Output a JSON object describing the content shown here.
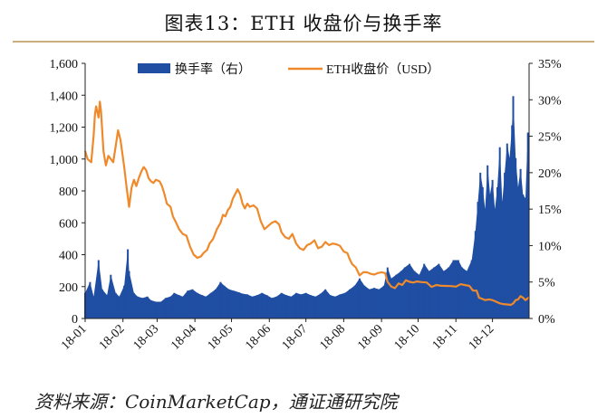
{
  "title": "图表13：ETH 收盘价与换手率",
  "source": "资料来源：CoinMarketCap，通证通研究院",
  "colors": {
    "turnover": "#1f4ea3",
    "price": "#ef8a2c",
    "axis": "#222222",
    "title_rule": "#c9b07a"
  },
  "chart_data": {
    "type": "bar+line",
    "title": "图表13：ETH 收盘价与换手率",
    "x_ticks": [
      "18-01",
      "18-02",
      "18-03",
      "18-04",
      "18-05",
      "18-06",
      "18-07",
      "18-08",
      "18-09",
      "18-10",
      "18-11",
      "18-12"
    ],
    "x_range": [
      "2018-01-01",
      "2018-12-31"
    ],
    "y_left": {
      "min": 0,
      "max": 1600,
      "ticks": [
        "0",
        "200",
        "400",
        "600",
        "800",
        "1,000",
        "1,200",
        "1,400",
        "1,600"
      ]
    },
    "y_right": {
      "min": 0,
      "max": 35,
      "ticks": [
        "0%",
        "5%",
        "10%",
        "15%",
        "20%",
        "25%",
        "30%",
        "35%"
      ]
    },
    "legend": {
      "position": "top",
      "entries": [
        "换手率（右）",
        "ETH收盘价（USD）"
      ]
    },
    "series": [
      {
        "name": "ETH收盘价（USD）",
        "axis": "left",
        "kind": "line",
        "points": [
          [
            "2018-01-01",
            1050
          ],
          [
            "2018-01-03",
            1000
          ],
          [
            "2018-01-06",
            980
          ],
          [
            "2018-01-08",
            1150
          ],
          [
            "2018-01-09",
            1280
          ],
          [
            "2018-01-10",
            1330
          ],
          [
            "2018-01-12",
            1260
          ],
          [
            "2018-01-13",
            1360
          ],
          [
            "2018-01-14",
            1300
          ],
          [
            "2018-01-16",
            1050
          ],
          [
            "2018-01-18",
            960
          ],
          [
            "2018-01-20",
            1020
          ],
          [
            "2018-01-22",
            1000
          ],
          [
            "2018-01-24",
            980
          ],
          [
            "2018-01-26",
            1080
          ],
          [
            "2018-01-28",
            1180
          ],
          [
            "2018-01-30",
            1120
          ],
          [
            "2018-02-02",
            950
          ],
          [
            "2018-02-04",
            820
          ],
          [
            "2018-02-06",
            700
          ],
          [
            "2018-02-08",
            820
          ],
          [
            "2018-02-10",
            870
          ],
          [
            "2018-02-12",
            830
          ],
          [
            "2018-02-14",
            880
          ],
          [
            "2018-02-16",
            920
          ],
          [
            "2018-02-18",
            950
          ],
          [
            "2018-02-20",
            930
          ],
          [
            "2018-02-22",
            880
          ],
          [
            "2018-02-24",
            860
          ],
          [
            "2018-02-26",
            850
          ],
          [
            "2018-02-28",
            870
          ],
          [
            "2018-03-03",
            860
          ],
          [
            "2018-03-05",
            830
          ],
          [
            "2018-03-07",
            780
          ],
          [
            "2018-03-09",
            720
          ],
          [
            "2018-03-12",
            700
          ],
          [
            "2018-03-14",
            640
          ],
          [
            "2018-03-16",
            610
          ],
          [
            "2018-03-19",
            560
          ],
          [
            "2018-03-22",
            530
          ],
          [
            "2018-03-25",
            520
          ],
          [
            "2018-03-28",
            450
          ],
          [
            "2018-03-31",
            400
          ],
          [
            "2018-04-03",
            380
          ],
          [
            "2018-04-06",
            390
          ],
          [
            "2018-04-08",
            410
          ],
          [
            "2018-04-11",
            430
          ],
          [
            "2018-04-13",
            470
          ],
          [
            "2018-04-16",
            500
          ],
          [
            "2018-04-19",
            560
          ],
          [
            "2018-04-22",
            600
          ],
          [
            "2018-04-24",
            650
          ],
          [
            "2018-04-26",
            640
          ],
          [
            "2018-04-28",
            680
          ],
          [
            "2018-04-30",
            700
          ],
          [
            "2018-05-02",
            750
          ],
          [
            "2018-05-04",
            780
          ],
          [
            "2018-05-06",
            810
          ],
          [
            "2018-05-08",
            780
          ],
          [
            "2018-05-10",
            720
          ],
          [
            "2018-05-12",
            690
          ],
          [
            "2018-05-14",
            720
          ],
          [
            "2018-05-16",
            700
          ],
          [
            "2018-05-19",
            710
          ],
          [
            "2018-05-22",
            690
          ],
          [
            "2018-05-25",
            610
          ],
          [
            "2018-05-28",
            560
          ],
          [
            "2018-05-31",
            580
          ],
          [
            "2018-06-03",
            600
          ],
          [
            "2018-06-06",
            610
          ],
          [
            "2018-06-09",
            590
          ],
          [
            "2018-06-11",
            540
          ],
          [
            "2018-06-14",
            510
          ],
          [
            "2018-06-17",
            500
          ],
          [
            "2018-06-20",
            530
          ],
          [
            "2018-06-23",
            470
          ],
          [
            "2018-06-26",
            440
          ],
          [
            "2018-06-29",
            430
          ],
          [
            "2018-07-02",
            460
          ],
          [
            "2018-07-05",
            470
          ],
          [
            "2018-07-08",
            490
          ],
          [
            "2018-07-11",
            440
          ],
          [
            "2018-07-14",
            450
          ],
          [
            "2018-07-17",
            480
          ],
          [
            "2018-07-20",
            460
          ],
          [
            "2018-07-23",
            470
          ],
          [
            "2018-07-26",
            465
          ],
          [
            "2018-07-29",
            455
          ],
          [
            "2018-08-01",
            420
          ],
          [
            "2018-08-04",
            410
          ],
          [
            "2018-08-06",
            370
          ],
          [
            "2018-08-08",
            340
          ],
          [
            "2018-08-11",
            320
          ],
          [
            "2018-08-14",
            270
          ],
          [
            "2018-08-17",
            290
          ],
          [
            "2018-08-20",
            290
          ],
          [
            "2018-08-23",
            280
          ],
          [
            "2018-08-26",
            275
          ],
          [
            "2018-08-29",
            285
          ],
          [
            "2018-09-01",
            290
          ],
          [
            "2018-09-04",
            285
          ],
          [
            "2018-09-06",
            230
          ],
          [
            "2018-09-09",
            200
          ],
          [
            "2018-09-12",
            190
          ],
          [
            "2018-09-15",
            220
          ],
          [
            "2018-09-18",
            210
          ],
          [
            "2018-09-21",
            240
          ],
          [
            "2018-09-24",
            230
          ],
          [
            "2018-09-27",
            225
          ],
          [
            "2018-09-30",
            232
          ],
          [
            "2018-10-04",
            228
          ],
          [
            "2018-10-08",
            226
          ],
          [
            "2018-10-12",
            198
          ],
          [
            "2018-10-16",
            210
          ],
          [
            "2018-10-20",
            205
          ],
          [
            "2018-10-24",
            204
          ],
          [
            "2018-10-28",
            203
          ],
          [
            "2018-11-01",
            200
          ],
          [
            "2018-11-05",
            215
          ],
          [
            "2018-11-08",
            210
          ],
          [
            "2018-11-12",
            205
          ],
          [
            "2018-11-15",
            175
          ],
          [
            "2018-11-18",
            175
          ],
          [
            "2018-11-20",
            130
          ],
          [
            "2018-11-22",
            125
          ],
          [
            "2018-11-25",
            115
          ],
          [
            "2018-11-28",
            120
          ],
          [
            "2018-12-01",
            115
          ],
          [
            "2018-12-04",
            105
          ],
          [
            "2018-12-07",
            95
          ],
          [
            "2018-12-10",
            90
          ],
          [
            "2018-12-13",
            88
          ],
          [
            "2018-12-16",
            85
          ],
          [
            "2018-12-18",
            95
          ],
          [
            "2018-12-20",
            115
          ],
          [
            "2018-12-22",
            120
          ],
          [
            "2018-12-24",
            140
          ],
          [
            "2018-12-26",
            130
          ],
          [
            "2018-12-28",
            115
          ],
          [
            "2018-12-31",
            133
          ]
        ]
      },
      {
        "name": "换手率（右）",
        "axis": "right",
        "kind": "bar",
        "unit": "%",
        "points": [
          [
            "2018-01-01",
            3.5
          ],
          [
            "2018-01-05",
            5.0
          ],
          [
            "2018-01-08",
            3.0
          ],
          [
            "2018-01-12",
            8.0
          ],
          [
            "2018-01-15",
            4.0
          ],
          [
            "2018-01-19",
            3.2
          ],
          [
            "2018-01-22",
            6.0
          ],
          [
            "2018-01-26",
            3.5
          ],
          [
            "2018-01-29",
            3.0
          ],
          [
            "2018-02-02",
            4.5
          ],
          [
            "2018-02-05",
            9.5
          ],
          [
            "2018-02-06",
            6.5
          ],
          [
            "2018-02-10",
            3.5
          ],
          [
            "2018-02-13",
            3.0
          ],
          [
            "2018-02-17",
            2.8
          ],
          [
            "2018-02-21",
            3.0
          ],
          [
            "2018-02-24",
            2.5
          ],
          [
            "2018-02-28",
            2.3
          ],
          [
            "2018-03-04",
            2.3
          ],
          [
            "2018-03-08",
            2.8
          ],
          [
            "2018-03-12",
            3.0
          ],
          [
            "2018-03-15",
            3.5
          ],
          [
            "2018-03-19",
            3.2
          ],
          [
            "2018-03-22",
            3.0
          ],
          [
            "2018-03-26",
            3.8
          ],
          [
            "2018-03-30",
            4.0
          ],
          [
            "2018-04-03",
            3.5
          ],
          [
            "2018-04-07",
            3.2
          ],
          [
            "2018-04-10",
            3.0
          ],
          [
            "2018-04-14",
            3.5
          ],
          [
            "2018-04-18",
            4.0
          ],
          [
            "2018-04-22",
            5.0
          ],
          [
            "2018-04-25",
            4.5
          ],
          [
            "2018-04-29",
            4.0
          ],
          [
            "2018-05-03",
            3.8
          ],
          [
            "2018-05-07",
            3.6
          ],
          [
            "2018-05-10",
            3.4
          ],
          [
            "2018-05-14",
            3.3
          ],
          [
            "2018-05-18",
            3.0
          ],
          [
            "2018-05-22",
            3.2
          ],
          [
            "2018-05-26",
            3.5
          ],
          [
            "2018-05-30",
            3.2
          ],
          [
            "2018-06-03",
            2.8
          ],
          [
            "2018-06-07",
            3.0
          ],
          [
            "2018-06-11",
            3.5
          ],
          [
            "2018-06-15",
            3.2
          ],
          [
            "2018-06-19",
            3.0
          ],
          [
            "2018-06-23",
            3.5
          ],
          [
            "2018-06-27",
            3.3
          ],
          [
            "2018-07-01",
            3.5
          ],
          [
            "2018-07-05",
            3.2
          ],
          [
            "2018-07-09",
            3.0
          ],
          [
            "2018-07-13",
            3.4
          ],
          [
            "2018-07-17",
            4.0
          ],
          [
            "2018-07-21",
            3.2
          ],
          [
            "2018-07-25",
            3.0
          ],
          [
            "2018-07-29",
            3.3
          ],
          [
            "2018-08-02",
            3.5
          ],
          [
            "2018-08-06",
            4.0
          ],
          [
            "2018-08-10",
            4.5
          ],
          [
            "2018-08-14",
            5.5
          ],
          [
            "2018-08-18",
            4.5
          ],
          [
            "2018-08-22",
            4.0
          ],
          [
            "2018-08-26",
            4.2
          ],
          [
            "2018-08-30",
            4.0
          ],
          [
            "2018-09-03",
            4.5
          ],
          [
            "2018-09-06",
            7.0
          ],
          [
            "2018-09-09",
            5.5
          ],
          [
            "2018-09-13",
            6.0
          ],
          [
            "2018-09-17",
            6.5
          ],
          [
            "2018-09-20",
            7.0
          ],
          [
            "2018-09-24",
            7.5
          ],
          [
            "2018-09-28",
            6.5
          ],
          [
            "2018-10-02",
            6.0
          ],
          [
            "2018-10-06",
            7.5
          ],
          [
            "2018-10-10",
            6.5
          ],
          [
            "2018-10-14",
            7.0
          ],
          [
            "2018-10-18",
            7.5
          ],
          [
            "2018-10-22",
            6.5
          ],
          [
            "2018-10-26",
            7.0
          ],
          [
            "2018-10-30",
            8.0
          ],
          [
            "2018-11-03",
            8.0
          ],
          [
            "2018-11-06",
            7.0
          ],
          [
            "2018-11-10",
            6.5
          ],
          [
            "2018-11-14",
            8.0
          ],
          [
            "2018-11-17",
            12.0
          ],
          [
            "2018-11-19",
            16.0
          ],
          [
            "2018-11-21",
            20.0
          ],
          [
            "2018-11-23",
            18.0
          ],
          [
            "2018-11-25",
            15.0
          ],
          [
            "2018-11-27",
            21.0
          ],
          [
            "2018-11-29",
            17.0
          ],
          [
            "2018-12-01",
            19.0
          ],
          [
            "2018-12-03",
            15.0
          ],
          [
            "2018-12-05",
            18.0
          ],
          [
            "2018-12-07",
            23.5
          ],
          [
            "2018-12-09",
            16.0
          ],
          [
            "2018-12-11",
            20.0
          ],
          [
            "2018-12-13",
            24.0
          ],
          [
            "2018-12-15",
            22.0
          ],
          [
            "2018-12-17",
            26.5
          ],
          [
            "2018-12-18",
            30.5
          ],
          [
            "2018-12-20",
            22.0
          ],
          [
            "2018-12-22",
            18.0
          ],
          [
            "2018-12-24",
            20.5
          ],
          [
            "2018-12-26",
            17.0
          ],
          [
            "2018-12-28",
            16.5
          ],
          [
            "2018-12-30",
            25.5
          ]
        ]
      }
    ]
  }
}
